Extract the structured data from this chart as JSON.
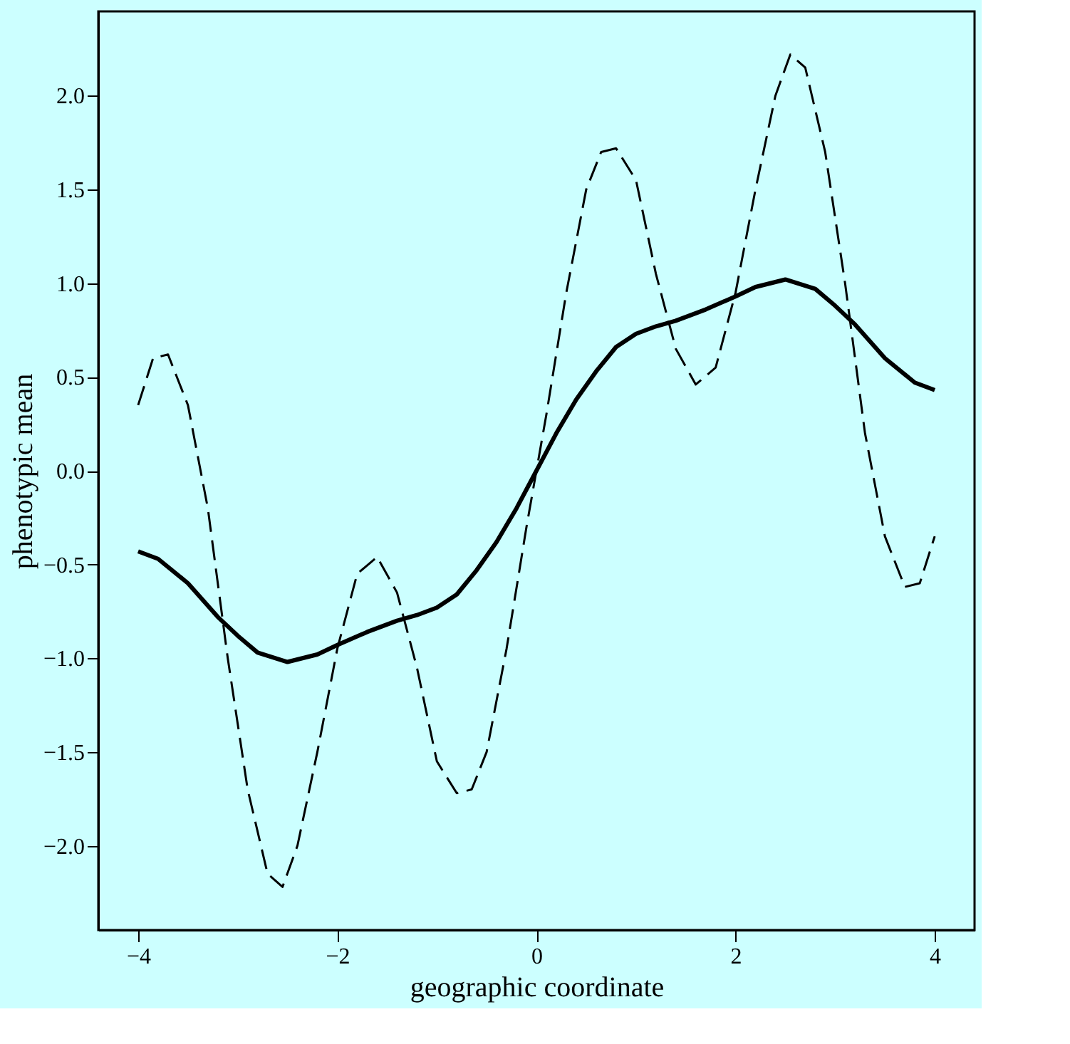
{
  "chart_data": {
    "type": "line",
    "xlabel": "geographic coordinate",
    "ylabel": "phenotypic mean",
    "xlim": [
      -4.4,
      4.4
    ],
    "ylim": [
      -2.45,
      2.45
    ],
    "xticks": [
      {
        "value": -4,
        "label": "−4"
      },
      {
        "value": -2,
        "label": "−2"
      },
      0,
      2,
      4
    ],
    "yticks": [
      {
        "value": -2,
        "label": "−2.0"
      },
      {
        "value": -1.5,
        "label": "−1.5"
      },
      {
        "value": -1,
        "label": "−1.0"
      },
      {
        "value": -0.5,
        "label": "−0.5"
      },
      {
        "value": 0,
        "label": "0.0"
      },
      {
        "value": 0.5,
        "label": "0.5"
      },
      {
        "value": 1,
        "label": "1.0"
      },
      {
        "value": 1.5,
        "label": "1.5"
      },
      {
        "value": 2,
        "label": "2.0"
      }
    ],
    "grid": false,
    "marker": "none",
    "series": [
      {
        "color": "#000000",
        "line_style": "solid",
        "x": [
          -4,
          -3.8,
          -3.5,
          -3.2,
          -3,
          -2.8,
          -2.5,
          -2.2,
          -2,
          -1.7,
          -1.4,
          -1.2,
          -1,
          -0.8,
          -0.6,
          -0.4,
          -0.2,
          0,
          0.2,
          0.4,
          0.6,
          0.8,
          1,
          1.2,
          1.4,
          1.7,
          2,
          2.2,
          2.5,
          2.8,
          3,
          3.2,
          3.5,
          3.8,
          4
        ],
        "values": [
          -0.43,
          -0.47,
          -0.6,
          -0.78,
          -0.88,
          -0.97,
          -1.02,
          -0.98,
          -0.93,
          -0.86,
          -0.8,
          -0.77,
          -0.73,
          -0.66,
          -0.53,
          -0.38,
          -0.2,
          0,
          0.2,
          0.38,
          0.53,
          0.66,
          0.73,
          0.77,
          0.8,
          0.86,
          0.93,
          0.98,
          1.02,
          0.97,
          0.88,
          0.78,
          0.6,
          0.47,
          0.43
        ]
      },
      {
        "color": "#000000",
        "line_style": "dashed",
        "x": [
          -4,
          -3.85,
          -3.7,
          -3.5,
          -3.3,
          -3.1,
          -2.9,
          -2.7,
          -2.55,
          -2.4,
          -2.2,
          -2,
          -1.8,
          -1.6,
          -1.4,
          -1.2,
          -1,
          -0.8,
          -0.65,
          -0.5,
          -0.3,
          -0.1,
          0,
          0.1,
          0.3,
          0.5,
          0.65,
          0.8,
          1,
          1.2,
          1.4,
          1.6,
          1.8,
          2,
          2.2,
          2.4,
          2.55,
          2.7,
          2.9,
          3.1,
          3.3,
          3.5,
          3.7,
          3.85,
          4
        ],
        "values": [
          0.35,
          0.6,
          0.62,
          0.35,
          -0.2,
          -1.0,
          -1.7,
          -2.15,
          -2.22,
          -2.0,
          -1.5,
          -0.95,
          -0.55,
          -0.46,
          -0.65,
          -1.05,
          -1.55,
          -1.72,
          -1.7,
          -1.5,
          -0.95,
          -0.3,
          0,
          0.3,
          0.95,
          1.5,
          1.7,
          1.72,
          1.55,
          1.05,
          0.65,
          0.46,
          0.55,
          0.95,
          1.5,
          2.0,
          2.22,
          2.15,
          1.7,
          1.0,
          0.2,
          -0.35,
          -0.62,
          -0.6,
          -0.35
        ]
      }
    ]
  }
}
